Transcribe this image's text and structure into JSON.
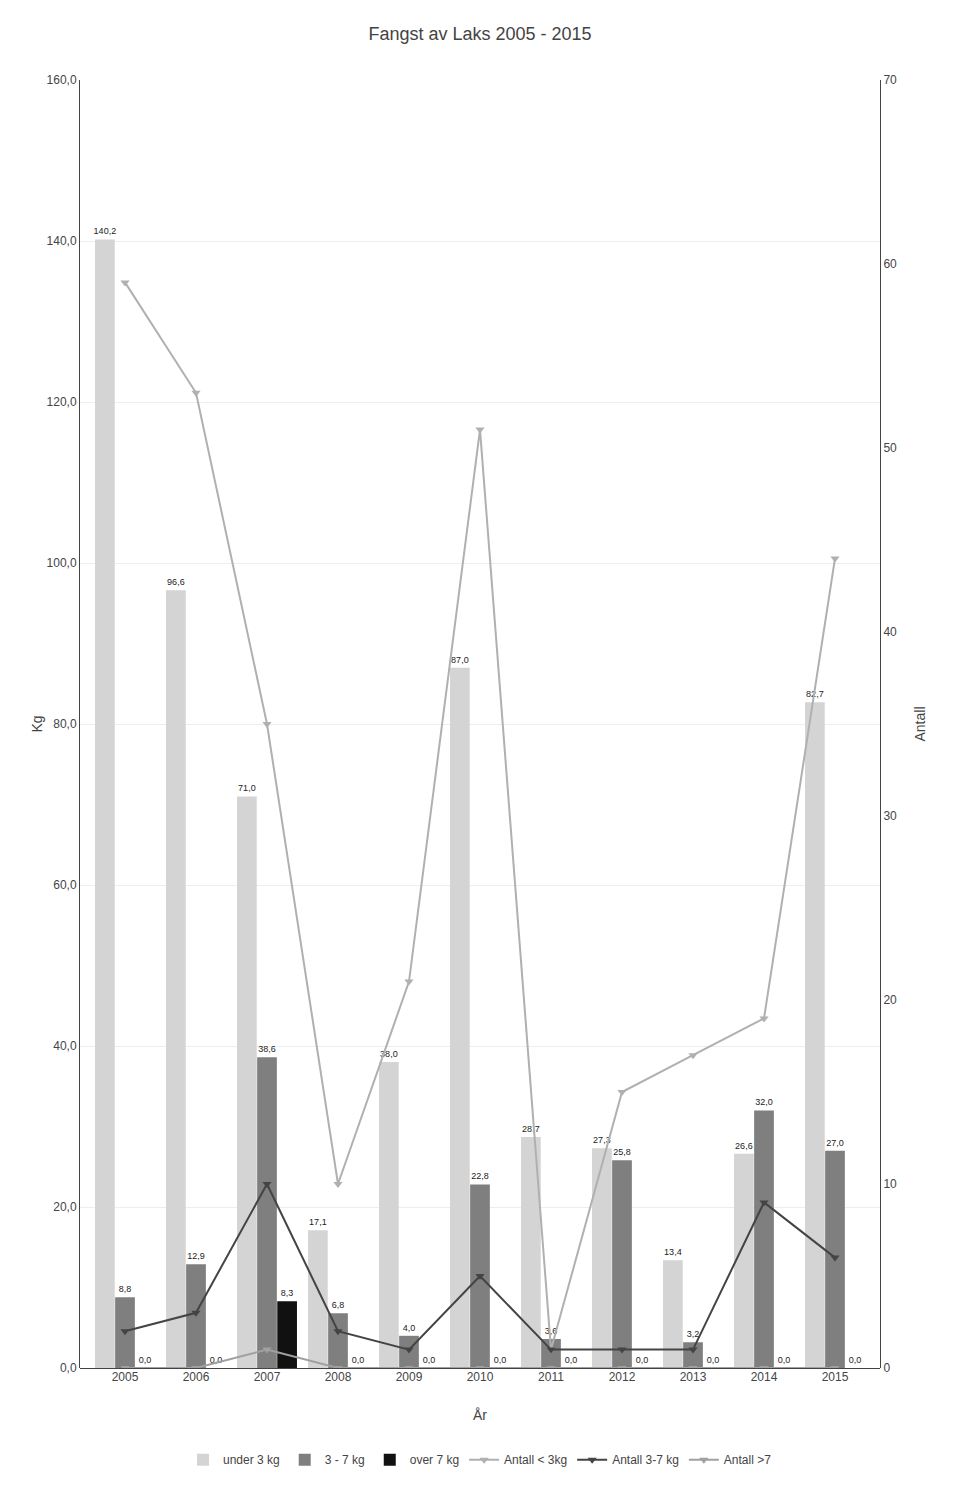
{
  "chart_data": {
    "type": "bar",
    "title": "Fangst av Laks 2005 - 2015",
    "xlabel": "År",
    "ylabel": "Kg",
    "y2label": "Antall",
    "categories": [
      "2005",
      "2006",
      "2007",
      "2008",
      "2009",
      "2010",
      "2011",
      "2012",
      "2013",
      "2014",
      "2015"
    ],
    "series": [
      {
        "name": "under 3 kg",
        "type": "bar",
        "color": "#d4d4d4",
        "values": [
          140.2,
          96.6,
          71.0,
          17.1,
          38.0,
          87.0,
          28.7,
          27.3,
          13.4,
          26.6,
          82.7
        ],
        "value_labels": [
          "140,2",
          "96,6",
          "71,0",
          "17,1",
          "38,0",
          "87,0",
          "28,7",
          "27,3",
          "13,4",
          "26,6",
          "82,7"
        ]
      },
      {
        "name": "3 - 7 kg",
        "type": "bar",
        "color": "#7f7f7f",
        "values": [
          8.8,
          12.9,
          38.6,
          6.8,
          4.0,
          22.8,
          3.6,
          25.8,
          3.2,
          32.0,
          27.0
        ],
        "value_labels": [
          "8,8",
          "12,9",
          "38,6",
          "6,8",
          "4,0",
          "22,8",
          "3,6",
          "25,8",
          "3,2",
          "32,0",
          "27,0"
        ]
      },
      {
        "name": "over 7 kg",
        "type": "bar",
        "color": "#111111",
        "values": [
          0.0,
          0.0,
          8.3,
          0.0,
          0.0,
          0.0,
          0.0,
          0.0,
          0.0,
          0.0,
          0.0
        ],
        "value_labels": [
          "0,0",
          "0,0",
          "8,3",
          "0,0",
          "0,0",
          "0,0",
          "0,0",
          "0,0",
          "0,0",
          "0,0",
          "0,0"
        ]
      },
      {
        "name": "Antall < 3kg",
        "type": "line",
        "axis": "y2",
        "color": "#b0b0b0",
        "marker": "triangle-down",
        "values": [
          59,
          53,
          35,
          10,
          21,
          51,
          1,
          15,
          17,
          19,
          44
        ]
      },
      {
        "name": "Antall 3-7 kg",
        "type": "line",
        "axis": "y2",
        "color": "#444444",
        "marker": "triangle-down",
        "values": [
          2,
          3,
          10,
          2,
          1,
          5,
          1,
          1,
          1,
          9,
          6
        ]
      },
      {
        "name": "Antall >7",
        "type": "line",
        "axis": "y2",
        "color": "#a0a0a0",
        "marker": "triangle-down",
        "values": [
          0,
          0,
          1,
          0,
          0,
          0,
          0,
          0,
          0,
          0,
          0
        ]
      }
    ],
    "ylim": [
      0,
      160
    ],
    "yticks": [
      {
        "value": 0,
        "label": "0,0"
      },
      {
        "value": 20,
        "label": "20,0"
      },
      {
        "value": 40,
        "label": "40,0"
      },
      {
        "value": 60,
        "label": "60,0"
      },
      {
        "value": 80,
        "label": "80,0"
      },
      {
        "value": 100,
        "label": "100,0"
      },
      {
        "value": 120,
        "label": "120,0"
      },
      {
        "value": 140,
        "label": "140,0"
      },
      {
        "value": 160,
        "label": "160,0"
      }
    ],
    "y2lim": [
      0,
      70
    ],
    "y2ticks": [
      0,
      10,
      20,
      30,
      40,
      50,
      60,
      70
    ],
    "data_labels": true,
    "grid": true,
    "legend": "bottom"
  }
}
